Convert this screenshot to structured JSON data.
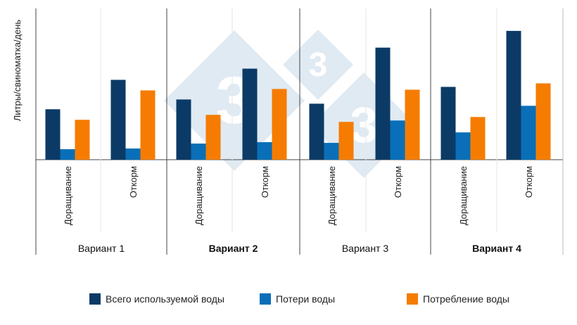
{
  "chart_data": {
    "type": "bar",
    "ylabel": "Литры/свиноматка/день",
    "groups": [
      {
        "label": "Вариант 1",
        "bold": false,
        "categories": [
          "Доращивание",
          "Откорм"
        ]
      },
      {
        "label": "Вариант 2",
        "bold": true,
        "categories": [
          "Доращивание",
          "Откорм"
        ]
      },
      {
        "label": "Вариант 3",
        "bold": false,
        "categories": [
          "Доращивание",
          "Откорм"
        ]
      },
      {
        "label": "Вариант 4",
        "bold": true,
        "categories": [
          "Доращивание",
          "Откорм"
        ]
      }
    ],
    "series": [
      {
        "name": "Всего используемой воды",
        "color": "#0b3a66",
        "values": [
          36,
          57,
          43,
          65,
          40,
          80,
          52,
          92
        ]
      },
      {
        "name": "Потери воды",
        "color": "#0a6fb8",
        "values": [
          7.5,
          8,
          11.5,
          12.5,
          12,
          28,
          19.5,
          38.5
        ]
      },
      {
        "name": "Потребление воды",
        "color": "#f57c00",
        "values": [
          28.5,
          49.5,
          32,
          50.5,
          27,
          50,
          30.5,
          54.5
        ]
      }
    ],
    "ylim": [
      -69,
      108
    ],
    "grid": false,
    "legend": "bottom"
  },
  "watermark": {
    "text": "3",
    "color": "#dbe6f1"
  }
}
